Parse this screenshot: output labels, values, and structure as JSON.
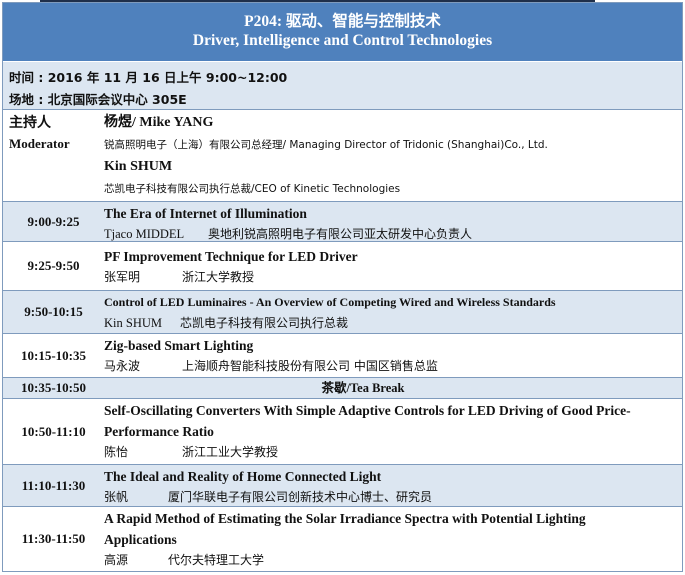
{
  "header": {
    "code_title": "P204:  驱动、智能与控制技术",
    "en_title": "Driver, Intelligence and Control Technologies"
  },
  "info": {
    "time": "时间 : 2016 年 11 月 16 日上午  9:00~12:00",
    "venue": "场地 : 北京国际会议中心 305E"
  },
  "moderator": {
    "label_cn": "主持人",
    "label_en": "Moderator",
    "people": [
      {
        "name": "杨煜/ Mike YANG",
        "title": "锐高照明电子（上海）有限公司总经理/ Managing Director of Tridonic (Shanghai)Co., Ltd."
      },
      {
        "name": "Kin SHUM",
        "title": "芯凯电子科技有限公司执行总裁/CEO of Kinetic Technologies"
      }
    ]
  },
  "sessions": [
    {
      "time": "9:00-9:25",
      "title": "The Era of Internet of Illumination",
      "speaker": "Tjaco MIDDEL",
      "affiliation": "奥地利锐高照明电子有限公司亚太研发中心负责人"
    },
    {
      "time": "9:25-9:50",
      "title": "PF Improvement Technique for LED Driver",
      "speaker": "张军明",
      "affiliation": "浙江大学教授"
    },
    {
      "time": "9:50-10:15",
      "title": "Control of LED Luminaires - An Overview of Competing Wired and Wireless Standards",
      "speaker": "Kin SHUM",
      "affiliation": "芯凯电子科技有限公司执行总裁"
    },
    {
      "time": "10:15-10:35",
      "title": "Zig-based Smart Lighting",
      "speaker": "马永波",
      "affiliation": "上海顺舟智能科技股份有限公司 中国区销售总监"
    },
    {
      "time": "10:35-10:50",
      "break": "茶歇/Tea Break"
    },
    {
      "time": "10:50-11:10",
      "title": "Self-Oscillating Converters With Simple Adaptive Controls for LED Driving of Good Price-Performance Ratio",
      "speaker": "陈怡",
      "affiliation": "浙江工业大学教授"
    },
    {
      "time": "11:10-11:30",
      "title": "The Ideal and Reality of Home Connected Light",
      "speaker": "张帆",
      "affiliation": "厦门华联电子有限公司创新技术中心博士、研究员"
    },
    {
      "time": "11:30-11:50",
      "title": "A Rapid Method of Estimating the Solar Irradiance Spectra with Potential Lighting Applications",
      "speaker": "高源",
      "affiliation": "代尔夫特理工大学"
    }
  ],
  "colors": {
    "header": "#4f81bd",
    "row_alt": "#dce6f1",
    "border": "#7f9bbd"
  }
}
